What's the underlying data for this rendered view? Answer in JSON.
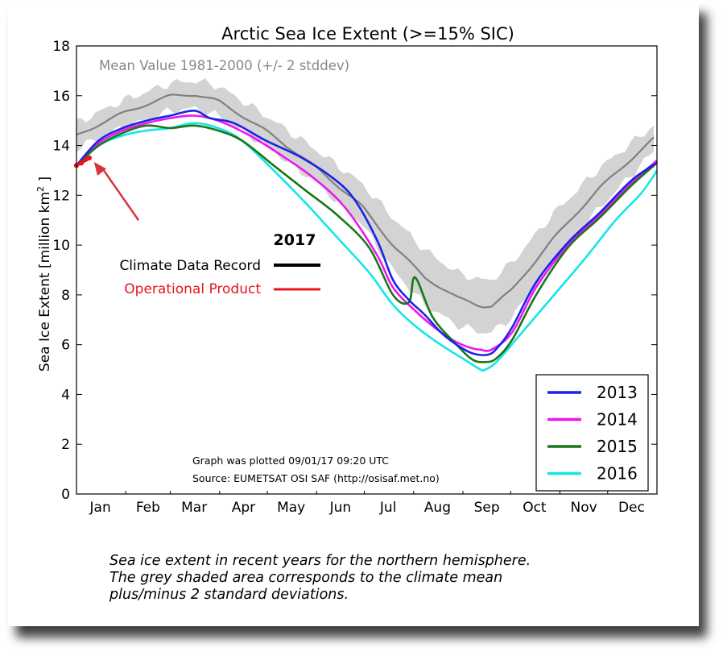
{
  "caption_lines": [
    "Sea ice extent in recent years for the northern hemisphere.",
    "The grey shaded area corresponds to the climate mean",
    "plus/minus 2 standard deviations."
  ],
  "chart_data": {
    "type": "line",
    "title": "Arctic Sea Ice Extent (>=15% SIC)",
    "ylabel": "Sea Ice Extent [million km²]",
    "ylabel_parts": {
      "pre": "Sea Ice Extent [million km",
      "sup": "2",
      "post": " ]"
    },
    "xlabel": "",
    "ylim": [
      0,
      18
    ],
    "yticks": [
      0,
      2,
      4,
      6,
      8,
      10,
      12,
      14,
      16,
      18
    ],
    "xlim": [
      1,
      366
    ],
    "xticks": [
      {
        "label": "Jan",
        "day": 16
      },
      {
        "label": "Feb",
        "day": 46
      },
      {
        "label": "Mar",
        "day": 75
      },
      {
        "label": "Apr",
        "day": 106
      },
      {
        "label": "May",
        "day": 136
      },
      {
        "label": "Jun",
        "day": 167
      },
      {
        "label": "Jul",
        "day": 197
      },
      {
        "label": "Aug",
        "day": 228
      },
      {
        "label": "Sep",
        "day": 259
      },
      {
        "label": "Oct",
        "day": 289
      },
      {
        "label": "Nov",
        "day": 320
      },
      {
        "label": "Dec",
        "day": 350
      }
    ],
    "mean_band_label": "Mean Value 1981-2000 (+/- 2 stddev)",
    "mean": {
      "days": [
        1,
        30,
        60,
        75,
        90,
        120,
        150,
        180,
        200,
        220,
        240,
        255,
        262,
        275,
        300,
        330,
        366
      ],
      "mean": [
        14.4,
        15.3,
        16.0,
        16.05,
        15.8,
        14.6,
        13.2,
        11.6,
        10.0,
        8.7,
        7.9,
        7.55,
        7.55,
        8.2,
        10.2,
        12.3,
        14.4
      ],
      "upper": [
        14.9,
        15.8,
        16.5,
        16.6,
        16.4,
        15.2,
        13.9,
        12.5,
        11.1,
        9.8,
        8.9,
        8.6,
        8.6,
        9.3,
        11.2,
        13.1,
        14.9
      ],
      "lower": [
        13.9,
        14.7,
        15.4,
        15.5,
        15.2,
        14.0,
        12.6,
        10.9,
        9.0,
        7.6,
        6.8,
        6.5,
        6.5,
        7.1,
        9.3,
        11.5,
        13.9
      ]
    },
    "series": [
      {
        "name": "2013",
        "color": "#1a23e6",
        "days": [
          1,
          15,
          30,
          45,
          60,
          75,
          85,
          100,
          120,
          140,
          160,
          175,
          190,
          200,
          210,
          220,
          230,
          240,
          250,
          260,
          266,
          275,
          290,
          310,
          330,
          350,
          366
        ],
        "values": [
          13.2,
          14.2,
          14.7,
          15.0,
          15.2,
          15.4,
          15.1,
          14.9,
          14.2,
          13.6,
          12.8,
          11.9,
          10.2,
          8.6,
          7.8,
          7.2,
          6.5,
          6.0,
          5.65,
          5.6,
          5.9,
          6.7,
          8.5,
          10.1,
          11.3,
          12.6,
          13.3
        ]
      },
      {
        "name": "2014",
        "color": "#ee16ee",
        "days": [
          1,
          15,
          30,
          45,
          60,
          75,
          90,
          110,
          130,
          150,
          170,
          190,
          200,
          215,
          230,
          240,
          250,
          255,
          262,
          275,
          290,
          310,
          330,
          350,
          366
        ],
        "values": [
          13.2,
          14.1,
          14.6,
          14.9,
          15.1,
          15.2,
          15.0,
          14.4,
          13.6,
          12.7,
          11.5,
          9.6,
          8.3,
          7.3,
          6.5,
          6.1,
          5.85,
          5.8,
          5.8,
          6.5,
          8.3,
          10.0,
          11.2,
          12.5,
          13.4
        ]
      },
      {
        "name": "2015",
        "color": "#187818",
        "days": [
          1,
          15,
          30,
          45,
          60,
          75,
          90,
          105,
          125,
          145,
          165,
          185,
          200,
          210,
          214,
          225,
          240,
          250,
          258,
          265,
          275,
          290,
          310,
          330,
          350,
          366
        ],
        "values": [
          13.2,
          14.0,
          14.5,
          14.8,
          14.7,
          14.8,
          14.6,
          14.2,
          13.2,
          12.2,
          11.2,
          9.9,
          8.0,
          7.7,
          8.7,
          7.1,
          6.0,
          5.4,
          5.3,
          5.45,
          6.2,
          8.0,
          9.9,
          11.1,
          12.4,
          13.3
        ]
      },
      {
        "name": "2016",
        "color": "#14e6e6",
        "days": [
          1,
          15,
          30,
          45,
          60,
          75,
          90,
          105,
          125,
          145,
          165,
          185,
          200,
          215,
          230,
          245,
          255,
          258,
          265,
          280,
          300,
          320,
          340,
          355,
          362,
          366
        ],
        "values": [
          13.2,
          14.0,
          14.4,
          14.6,
          14.7,
          14.9,
          14.7,
          14.2,
          13.0,
          11.7,
          10.3,
          8.9,
          7.6,
          6.7,
          6.0,
          5.4,
          5.0,
          5.0,
          5.3,
          6.4,
          7.9,
          9.4,
          11.0,
          12.0,
          12.6,
          13.0
        ]
      },
      {
        "name": "Climate Data Record",
        "year_label": "2017",
        "color": "#000000",
        "days": [
          1,
          7
        ],
        "values": [
          13.2,
          13.4
        ]
      },
      {
        "name": "Operational Product",
        "year_label": "2017",
        "color": "#e8141e",
        "days": [
          1,
          4,
          7,
          9
        ],
        "values": [
          13.2,
          13.3,
          13.45,
          13.5
        ]
      }
    ],
    "legend_2017": {
      "heading": "2017",
      "entries": [
        {
          "label": "Climate Data Record",
          "color": "#000000",
          "text_color": "#000000"
        },
        {
          "label": "Operational Product",
          "color": "#e8141e",
          "text_color": "#e8141e"
        }
      ]
    },
    "legend_years_placement": "bottom-right",
    "annotations": [
      "Graph was plotted 09/01/17 09:20 UTC",
      "Source: EUMETSAT OSI SAF (http://osisaf.met.no)"
    ],
    "arrow": {
      "from_day": 40,
      "from_value": 11.0,
      "to_day": 9,
      "to_value": 13.5,
      "color": "#d9343a"
    },
    "grid": false
  }
}
